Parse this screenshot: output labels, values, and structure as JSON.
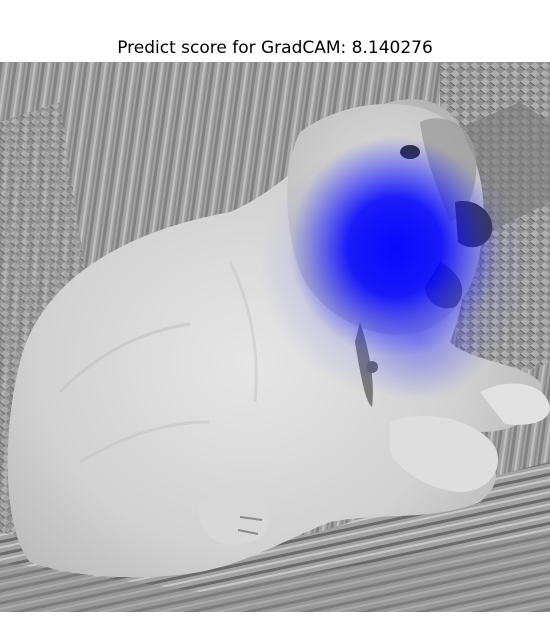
{
  "figure": {
    "title": "Predict score for GradCAM: 8.140276"
  },
  "image": {
    "mode": "grayscale",
    "overlay_color": "#0000ff"
  }
}
